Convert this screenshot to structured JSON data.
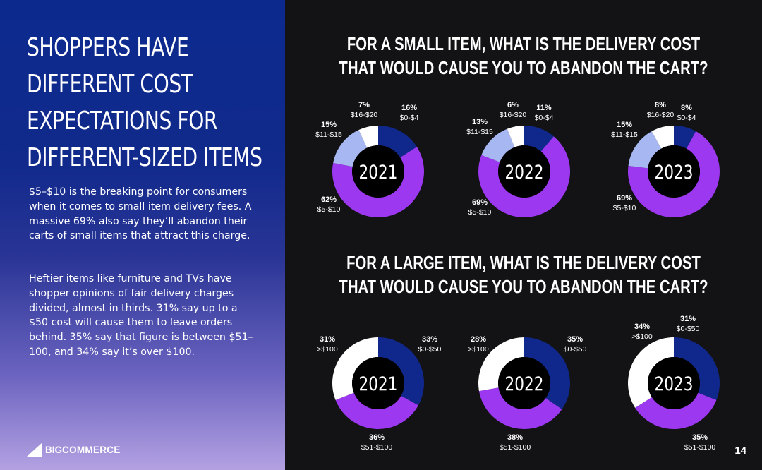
{
  "headline": [
    "SHOPPERS HAVE",
    "DIFFERENT COST",
    "EXPECTATIONS FOR",
    "DIFFERENT-SIZED ITEMS"
  ],
  "paragraphs": [
    "$5–$10 is the breaking point for consumers when it comes to small item delivery fees. A massive 69% also say they’ll abandon their carts of small items that attract this charge.",
    "Heftier items like furniture and TVs have shopper opinions of fair delivery charges divided, almost in thirds. 31% say up to a $50 cost will cause them to leave orders behind. 35% say that figure is between $51–100, and 34% say it’s over $100."
  ],
  "logo": {
    "big": "BIG",
    "rest": "COMMERCE"
  },
  "page_number": "14",
  "colors": {
    "navy": "#10288c",
    "purple": "#9b38f0",
    "light_blue": "#a7b7f2",
    "white": "#ffffff",
    "hole": "#000000"
  },
  "chart_data": [
    {
      "type": "pie",
      "style": "donut",
      "title": "FOR A SMALL ITEM, WHAT IS THE DELIVERY COST THAT WOULD CAUSE YOU TO ABANDON THE CART?",
      "title_lines": [
        "FOR A SMALL ITEM, WHAT IS THE DELIVERY COST",
        "THAT WOULD CAUSE YOU TO ABANDON THE CART?"
      ],
      "charts": [
        {
          "year": "2021",
          "slices": [
            {
              "label": "$0-$4",
              "value": 16,
              "text": "16%",
              "color": "#10288c"
            },
            {
              "label": "$5-$10",
              "value": 62,
              "text": "62%",
              "color": "#9b38f0"
            },
            {
              "label": "$11-$15",
              "value": 15,
              "text": "15%",
              "color": "#a7b7f2"
            },
            {
              "label": "$16-$20",
              "value": 7,
              "text": "7%",
              "color": "#ffffff"
            }
          ]
        },
        {
          "year": "2022",
          "slices": [
            {
              "label": "$0-$4",
              "value": 11,
              "text": "11%",
              "color": "#10288c"
            },
            {
              "label": "$5-$10",
              "value": 69,
              "text": "69%",
              "color": "#9b38f0"
            },
            {
              "label": "$11-$15",
              "value": 13,
              "text": "13%",
              "color": "#a7b7f2"
            },
            {
              "label": "$16-$20",
              "value": 6,
              "text": "6%",
              "color": "#ffffff"
            }
          ]
        },
        {
          "year": "2023",
          "slices": [
            {
              "label": "$0-$4",
              "value": 8,
              "text": "8%",
              "color": "#10288c"
            },
            {
              "label": "$5-$10",
              "value": 69,
              "text": "69%",
              "color": "#9b38f0"
            },
            {
              "label": "$11-$15",
              "value": 15,
              "text": "15%",
              "color": "#a7b7f2"
            },
            {
              "label": "$16-$20",
              "value": 8,
              "text": "8%",
              "color": "#ffffff"
            }
          ]
        }
      ]
    },
    {
      "type": "pie",
      "style": "donut",
      "title": "FOR A LARGE ITEM, WHAT IS THE DELIVERY COST THAT WOULD CAUSE YOU TO ABANDON THE CART?",
      "title_lines": [
        "FOR A LARGE ITEM, WHAT IS THE DELIVERY COST",
        "THAT WOULD CAUSE YOU TO ABANDON THE CART?"
      ],
      "charts": [
        {
          "year": "2021",
          "slices": [
            {
              "label": "$0-$50",
              "value": 33,
              "text": "33%",
              "color": "#10288c"
            },
            {
              "label": "$51-$100",
              "value": 36,
              "text": "36%",
              "color": "#9b38f0"
            },
            {
              "label": ">$100",
              "value": 31,
              "text": "31%",
              "color": "#ffffff"
            }
          ]
        },
        {
          "year": "2022",
          "slices": [
            {
              "label": "$0-$50",
              "value": 35,
              "text": "35%",
              "color": "#10288c"
            },
            {
              "label": "$51-$100",
              "value": 38,
              "text": "38%",
              "color": "#9b38f0"
            },
            {
              "label": ">$100",
              "value": 28,
              "text": "28%",
              "color": "#ffffff"
            }
          ]
        },
        {
          "year": "2023",
          "slices": [
            {
              "label": "$0-$50",
              "value": 31,
              "text": "31%",
              "color": "#10288c"
            },
            {
              "label": "$51-$100",
              "value": 35,
              "text": "35%",
              "color": "#9b38f0"
            },
            {
              "label": ">$100",
              "value": 34,
              "text": "34%",
              "color": "#ffffff"
            }
          ]
        }
      ]
    }
  ]
}
